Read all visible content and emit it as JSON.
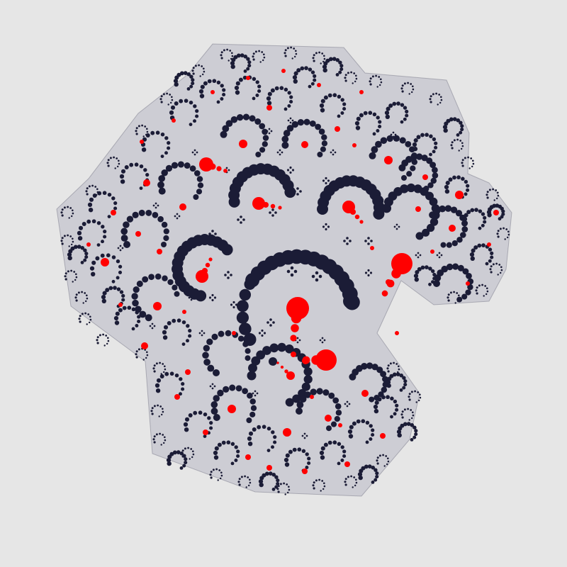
{
  "artwork": {
    "kind": "circle-packing fractal",
    "shape": "spiral arms of dots curling around a central C-shaped core",
    "colors": {
      "background": "#e6e6e6",
      "primary_dots": "#1b1c36",
      "accent_dots": "#ff0000",
      "outer_halo": "#b8b8c4"
    }
  }
}
